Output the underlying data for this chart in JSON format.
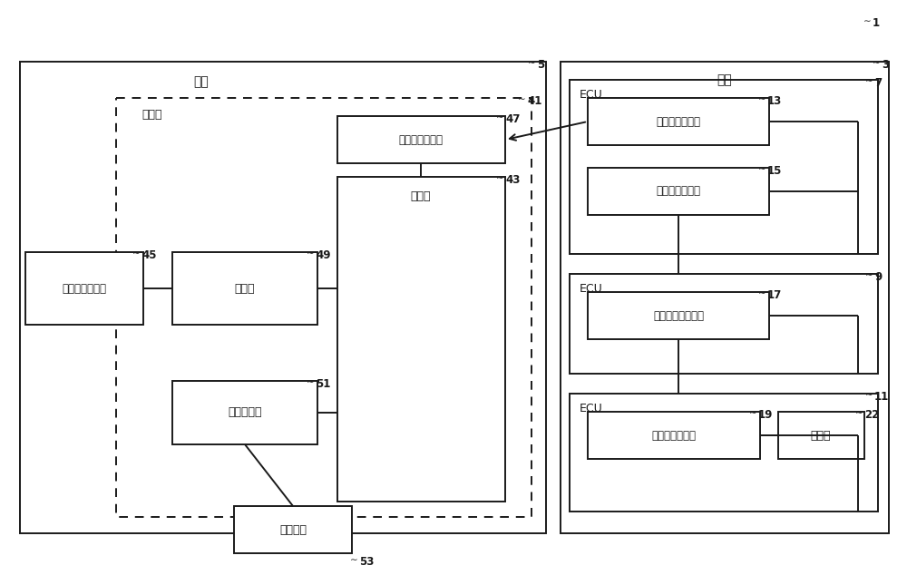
{
  "bg_color": "#ffffff",
  "line_color": "#1a1a1a",
  "label_color": "#1a1a1a",
  "fig_width": 10.0,
  "fig_height": 6.34,
  "center_label": "中心",
  "vehicle_label": "车辆",
  "control_label": "控制部",
  "map_db_label": "地图信息数据库",
  "calibrate_label": "校准部",
  "database_label": "数据库",
  "data_tx_center_label": "数据发送接收部",
  "info_label": "信息提供部",
  "data_tx_veh_label": "数据发送接收部",
  "pos_label": "本车位置测定部",
  "data_collect_label": "数据收集・分发部",
  "img_label": "图像数据获取部",
  "camera_label": "照相机",
  "ext_label": "外部装置",
  "ecu_label": "ECU",
  "ref1": "1",
  "ref3": "3",
  "ref5": "5",
  "ref7": "7",
  "ref9": "9",
  "ref11": "11",
  "ref13": "13",
  "ref15": "15",
  "ref17": "17",
  "ref19": "19",
  "ref22": "22",
  "ref41": "41",
  "ref43": "43",
  "ref45": "45",
  "ref47": "47",
  "ref49": "49",
  "ref51": "51",
  "ref53": "53"
}
